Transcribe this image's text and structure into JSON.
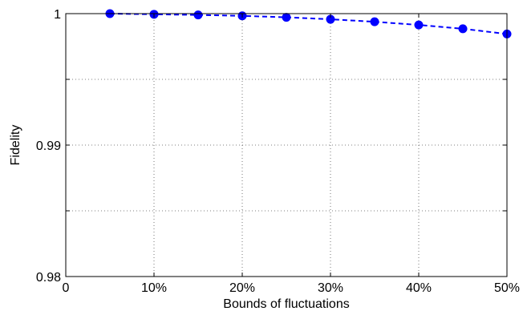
{
  "chart_data": {
    "type": "line",
    "title": "",
    "xlabel": "Bounds of fluctuations",
    "ylabel": "Fidelity",
    "xlim": [
      0,
      50
    ],
    "ylim": [
      0.98,
      1.0
    ],
    "x_ticks": [
      0,
      10,
      20,
      30,
      40,
      50
    ],
    "x_tick_labels": [
      "0",
      "10%",
      "20%",
      "30%",
      "40%",
      "50%"
    ],
    "y_ticks": [
      0.98,
      0.99,
      1.0
    ],
    "y_tick_labels": [
      "0.98",
      "0.99",
      "1"
    ],
    "grid": true,
    "series": [
      {
        "line_style": "dashed",
        "marker": "circle",
        "color": "#0000ff",
        "x": [
          5,
          10,
          15,
          20,
          25,
          30,
          35,
          40,
          45,
          50
        ],
        "y": [
          1.0,
          0.99995,
          0.9999,
          0.99983,
          0.99972,
          0.99957,
          0.99938,
          0.99914,
          0.99885,
          0.99845
        ]
      }
    ]
  }
}
